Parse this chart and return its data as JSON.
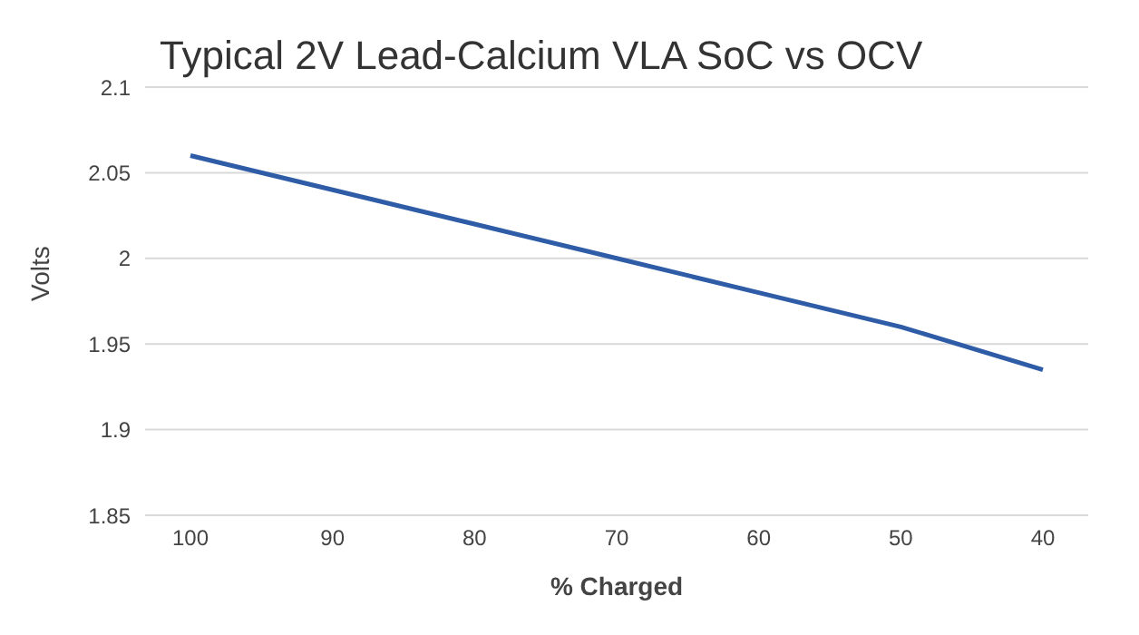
{
  "chart_data": {
    "type": "line",
    "title": "Typical 2V Lead-Calcium VLA SoC vs OCV",
    "xlabel": "% Charged",
    "ylabel": "Volts",
    "categories": [
      "100",
      "90",
      "80",
      "70",
      "60",
      "50",
      "40"
    ],
    "series": [
      {
        "color": "#2f5ca6",
        "values": [
          2.06,
          2.04,
          2.02,
          2.0,
          1.98,
          1.96,
          1.935
        ]
      }
    ],
    "ylim": [
      1.85,
      2.1
    ],
    "yticks": [
      1.85,
      1.9,
      1.95,
      {
        "value": 2,
        "label": "2"
      },
      2.05,
      2.1
    ],
    "grid": "y",
    "marker": "none",
    "line_style": "solid"
  }
}
